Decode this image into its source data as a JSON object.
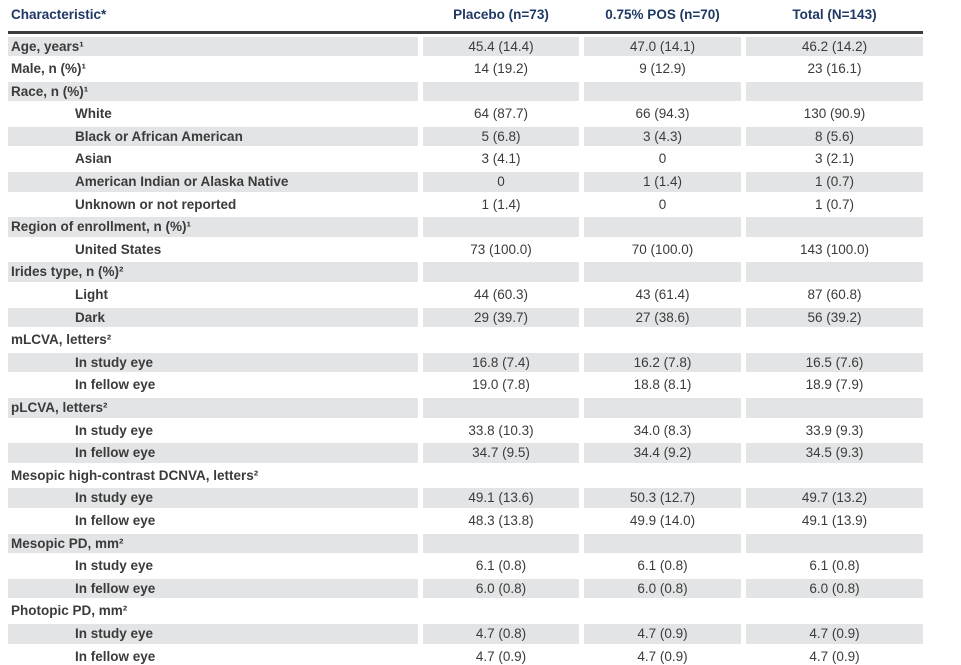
{
  "colors": {
    "header_text": "#1f3864",
    "row_shade": "#e3e4e6",
    "body_text": "#3b3b3b",
    "header_rule": "#3b3b3b"
  },
  "table": {
    "columns": [
      "Characteristic*",
      "Placebo (n=73)",
      "0.75% POS (n=70)",
      "Total (N=143)"
    ],
    "rows": [
      {
        "label": "Age, years¹",
        "indent": false,
        "values": [
          "45.4 (14.4)",
          "47.0 (14.1)",
          "46.2 (14.2)"
        ]
      },
      {
        "label": "Male, n (%)¹",
        "indent": false,
        "values": [
          "14 (19.2)",
          "9 (12.9)",
          "23 (16.1)"
        ]
      },
      {
        "label": "Race, n (%)¹",
        "indent": false,
        "values": [
          "",
          "",
          ""
        ]
      },
      {
        "label": "White",
        "indent": true,
        "values": [
          "64 (87.7)",
          "66 (94.3)",
          "130 (90.9)"
        ]
      },
      {
        "label": "Black or African American",
        "indent": true,
        "values": [
          "5 (6.8)",
          "3 (4.3)",
          "8 (5.6)"
        ]
      },
      {
        "label": "Asian",
        "indent": true,
        "values": [
          "3 (4.1)",
          "0",
          "3 (2.1)"
        ]
      },
      {
        "label": "American Indian or Alaska Native",
        "indent": true,
        "values": [
          "0",
          "1 (1.4)",
          "1 (0.7)"
        ]
      },
      {
        "label": "Unknown or not reported",
        "indent": true,
        "values": [
          "1 (1.4)",
          "0",
          "1 (0.7)"
        ]
      },
      {
        "label": "Region of enrollment, n (%)¹",
        "indent": false,
        "values": [
          "",
          "",
          ""
        ]
      },
      {
        "label": "United States",
        "indent": true,
        "values": [
          "73 (100.0)",
          "70 (100.0)",
          "143 (100.0)"
        ]
      },
      {
        "label": "Irides type, n (%)²",
        "indent": false,
        "values": [
          "",
          "",
          ""
        ]
      },
      {
        "label": "Light",
        "indent": true,
        "values": [
          "44 (60.3)",
          "43 (61.4)",
          "87 (60.8)"
        ]
      },
      {
        "label": "Dark",
        "indent": true,
        "values": [
          "29 (39.7)",
          "27 (38.6)",
          "56 (39.2)"
        ]
      },
      {
        "label": "mLCVA, letters²",
        "indent": false,
        "values": [
          "",
          "",
          ""
        ]
      },
      {
        "label": "In study eye",
        "indent": true,
        "values": [
          "16.8 (7.4)",
          "16.2 (7.8)",
          "16.5 (7.6)"
        ]
      },
      {
        "label": "In fellow eye",
        "indent": true,
        "values": [
          "19.0 (7.8)",
          "18.8 (8.1)",
          "18.9 (7.9)"
        ]
      },
      {
        "label": "pLCVA, letters²",
        "indent": false,
        "values": [
          "",
          "",
          ""
        ]
      },
      {
        "label": "In study eye",
        "indent": true,
        "values": [
          "33.8 (10.3)",
          "34.0 (8.3)",
          "33.9 (9.3)"
        ]
      },
      {
        "label": "In fellow eye",
        "indent": true,
        "values": [
          "34.7 (9.5)",
          "34.4 (9.2)",
          "34.5 (9.3)"
        ]
      },
      {
        "label": "Mesopic high-contrast DCNVA, letters²",
        "indent": false,
        "values": [
          "",
          "",
          ""
        ]
      },
      {
        "label": "In study eye",
        "indent": true,
        "values": [
          "49.1 (13.6)",
          "50.3 (12.7)",
          "49.7 (13.2)"
        ]
      },
      {
        "label": "In fellow eye",
        "indent": true,
        "values": [
          "48.3 (13.8)",
          "49.9 (14.0)",
          "49.1 (13.9)"
        ]
      },
      {
        "label": "Mesopic PD, mm²",
        "indent": false,
        "values": [
          "",
          "",
          ""
        ]
      },
      {
        "label": "In study eye",
        "indent": true,
        "values": [
          "6.1 (0.8)",
          "6.1 (0.8)",
          "6.1 (0.8)"
        ]
      },
      {
        "label": "In fellow eye",
        "indent": true,
        "values": [
          "6.0 (0.8)",
          "6.0 (0.8)",
          "6.0 (0.8)"
        ]
      },
      {
        "label": "Photopic PD, mm²",
        "indent": false,
        "values": [
          "",
          "",
          ""
        ]
      },
      {
        "label": "In study eye",
        "indent": true,
        "values": [
          "4.7 (0.8)",
          "4.7 (0.9)",
          "4.7 (0.9)"
        ]
      },
      {
        "label": "In fellow eye",
        "indent": true,
        "values": [
          "4.7 (0.9)",
          "4.7 (0.9)",
          "4.7 (0.9)"
        ]
      }
    ]
  }
}
